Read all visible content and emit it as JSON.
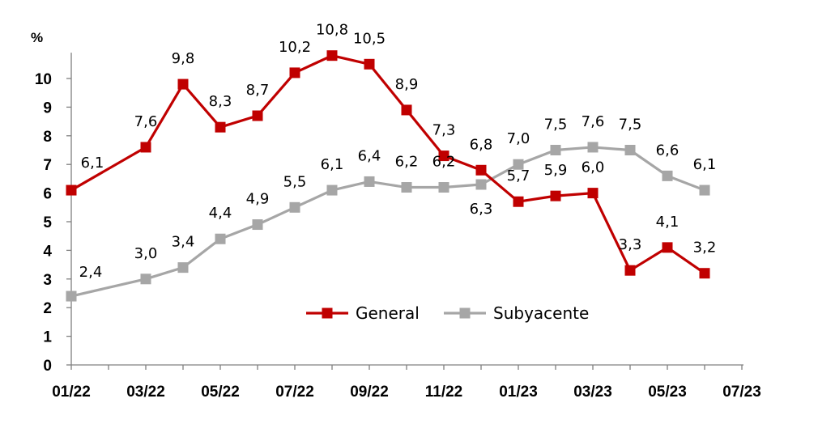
{
  "chart_data": {
    "type": "line",
    "ylabel": "%",
    "ylim": [
      0,
      11
    ],
    "y_ticks": [
      "0",
      "1",
      "2",
      "3",
      "4",
      "5",
      "6",
      "7",
      "8",
      "9",
      "10"
    ],
    "x_tick_labels": [
      "01/22",
      "03/22",
      "05/22",
      "07/22",
      "09/22",
      "11/22",
      "01/23",
      "03/23",
      "05/23",
      "07/23"
    ],
    "x": [
      "01/22",
      "02/22",
      "03/22",
      "04/22",
      "05/22",
      "06/22",
      "07/22",
      "08/22",
      "09/22",
      "10/22",
      "11/22",
      "12/22",
      "01/23",
      "02/23",
      "03/23",
      "04/23",
      "05/23",
      "06/23"
    ],
    "legend_position": "bottom-center",
    "grid": false,
    "series": [
      {
        "name": "General",
        "color": "#C00000",
        "values": [
          6.1,
          null,
          7.6,
          9.8,
          8.3,
          8.7,
          10.2,
          10.8,
          10.5,
          8.9,
          7.3,
          6.8,
          5.7,
          5.9,
          6.0,
          3.3,
          4.1,
          3.2
        ],
        "labels": [
          "6,1",
          null,
          "7,6",
          "9,8",
          "8,3",
          "8,7",
          "10,2",
          "10,8",
          "10,5",
          "8,9",
          "7,3",
          "6,8",
          "5,7",
          "5,9",
          "6,0",
          "3,3",
          "4,1",
          "3,2"
        ]
      },
      {
        "name": "Subyacente",
        "color": "#A6A6A6",
        "values": [
          2.4,
          null,
          3.0,
          3.4,
          4.4,
          4.9,
          5.5,
          6.1,
          6.4,
          6.2,
          6.2,
          6.3,
          7.0,
          7.5,
          7.6,
          7.5,
          6.6,
          6.1
        ],
        "labels": [
          "2,4",
          null,
          "3,0",
          "3,4",
          "4,4",
          "4,9",
          "5,5",
          "6,1",
          "6,4",
          "6,2",
          "6,2",
          "6,3",
          "7,0",
          "7,5",
          "7,6",
          "7,5",
          "6,6",
          "6,1"
        ]
      }
    ]
  }
}
